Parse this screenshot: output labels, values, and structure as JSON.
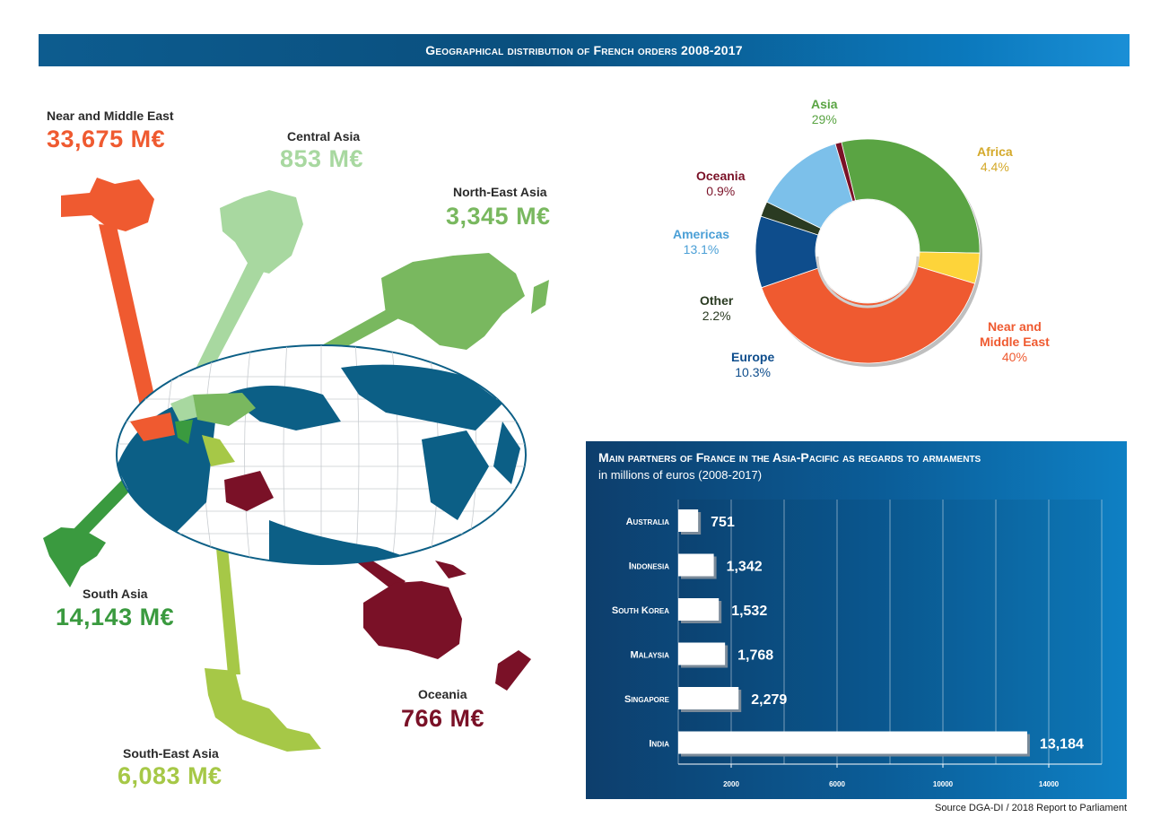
{
  "banner": {
    "title": "Geographical distribution of French orders 2008-2017"
  },
  "regions": [
    {
      "key": "near_middle_east",
      "name": "Near and Middle East",
      "value": "33,675 M€",
      "color": "#ef5a30"
    },
    {
      "key": "central_asia",
      "name": "Central Asia",
      "value": "853 M€",
      "color": "#a8d8a0"
    },
    {
      "key": "north_east_asia",
      "name": "North-East Asia",
      "value": "3,345 M€",
      "color": "#79b85f"
    },
    {
      "key": "south_asia",
      "name": "South Asia",
      "value": "14,143 M€",
      "color": "#3a9a3f"
    },
    {
      "key": "south_east_asia",
      "name": "South-East Asia",
      "value": "6,083 M€",
      "color": "#a6c847"
    },
    {
      "key": "oceania",
      "name": "Oceania",
      "value": "766 M€",
      "color": "#7a1127"
    }
  ],
  "chart_data": [
    {
      "type": "pie",
      "slices": [
        {
          "name": "Asia",
          "value": 29,
          "label": "29%",
          "color": "#5aa443"
        },
        {
          "name": "Africa",
          "value": 4.4,
          "label": "4.4%",
          "color": "#fdd43a"
        },
        {
          "name": "Near and Middle East",
          "label_lines": [
            "Near and",
            "Middle East"
          ],
          "value": 40,
          "label": "40%",
          "color": "#ef5a30"
        },
        {
          "name": "Europe",
          "value": 10.3,
          "label": "10.3%",
          "color": "#0e4d8c"
        },
        {
          "name": "Other",
          "value": 2.2,
          "label": "2.2%",
          "color": "#2a3b22"
        },
        {
          "name": "Americas",
          "value": 13.1,
          "label": "13.1%",
          "color": "#7cc0ea"
        },
        {
          "name": "Oceania",
          "value": 0.9,
          "label": "0.9%",
          "color": "#7a1127"
        }
      ]
    },
    {
      "type": "bar",
      "orientation": "horizontal",
      "title": "Main partners of France in the Asia-Pacific as regards to armaments",
      "subtitle": "in millions of euros (2008-2017)",
      "categories": [
        "Australia",
        "Indonesia",
        "South Korea",
        "Malaysia",
        "Singapore",
        "India"
      ],
      "values": [
        751,
        1342,
        1532,
        1768,
        2279,
        13184
      ],
      "value_labels": [
        "751",
        "1,342",
        "1,532",
        "1,768",
        "2,279",
        "13,184"
      ],
      "xlim": [
        0,
        16000
      ],
      "xticks": [
        2000,
        6000,
        10000,
        14000
      ],
      "grid": true
    }
  ],
  "source": "Source DGA-DI / 2018 Report to Parliament",
  "colors": {
    "banner": "#0b5c92",
    "panel": "#0b5d98",
    "ocean_land": "#0c5f86"
  }
}
